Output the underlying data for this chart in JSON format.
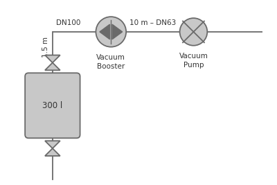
{
  "bg_color": "#ffffff",
  "line_color": "#6a6a6a",
  "fill_color": "#c8c8c8",
  "text_color": "#333333",
  "label_dn100": "DN100",
  "label_15m": "1.5 m",
  "label_10m": "10 m – DN63",
  "label_booster": "Vacuum\nBooster",
  "label_pump": "Vacuum\nPump",
  "label_tank": "300 l",
  "font_size": 7.5
}
